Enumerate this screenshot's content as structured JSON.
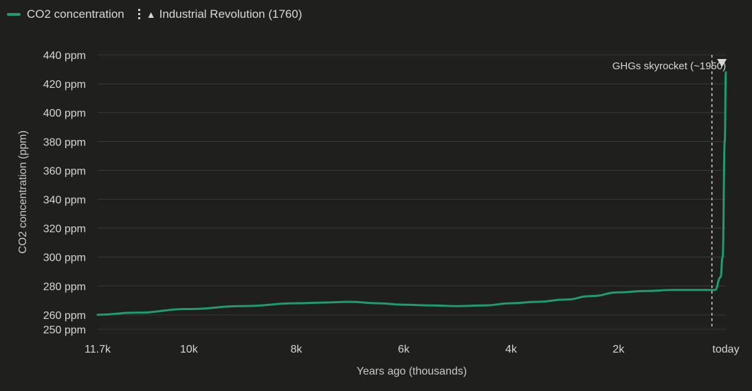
{
  "legend": {
    "series_label": "CO2 concentration",
    "event_label": "Industrial Revolution (1760)"
  },
  "colors": {
    "series": "#1d9e6e",
    "grid": "#3a3a38",
    "event_line": "#d0d0cc",
    "background": "#1f1f1e"
  },
  "chart_data": {
    "type": "line",
    "xlabel": "Years ago (thousands)",
    "ylabel": "CO2 concentration (ppm)",
    "xlim": [
      11.7,
      0
    ],
    "ylim": [
      250,
      440
    ],
    "x_ticks": [
      11.7,
      10,
      8,
      6,
      4,
      2,
      0
    ],
    "x_tick_labels": [
      "11.7k",
      "10k",
      "8k",
      "6k",
      "4k",
      "2k",
      "today"
    ],
    "y_ticks": [
      250,
      260,
      280,
      300,
      320,
      340,
      360,
      380,
      400,
      420,
      440
    ],
    "y_tick_labels": [
      "250 ppm",
      "260 ppm",
      "280 ppm",
      "300 ppm",
      "320 ppm",
      "340 ppm",
      "360 ppm",
      "380 ppm",
      "400 ppm",
      "420 ppm",
      "440 ppm"
    ],
    "grid": true,
    "legend_position": "top-left",
    "series": [
      {
        "name": "CO2 concentration",
        "x": [
          11.7,
          11,
          10,
          9,
          8,
          7.5,
          7,
          6.5,
          6,
          5.5,
          5,
          4.5,
          4,
          3.5,
          3,
          2.5,
          2,
          1.5,
          1,
          0.5,
          0.2,
          0.1,
          0.06,
          0.02,
          0
        ],
        "y": [
          260,
          261.5,
          264,
          266,
          268,
          268.5,
          269,
          268,
          267,
          266.5,
          266,
          266.5,
          268,
          269,
          270.5,
          273,
          275.5,
          276.5,
          277.2,
          277.2,
          277.2,
          286,
          300,
          380,
          428
        ]
      }
    ],
    "event": {
      "label": "Industrial Revolution (1760)",
      "x": 0.26
    },
    "annotation": {
      "text": "GHGs skyrocket (~1950)",
      "x": 0.074
    }
  }
}
